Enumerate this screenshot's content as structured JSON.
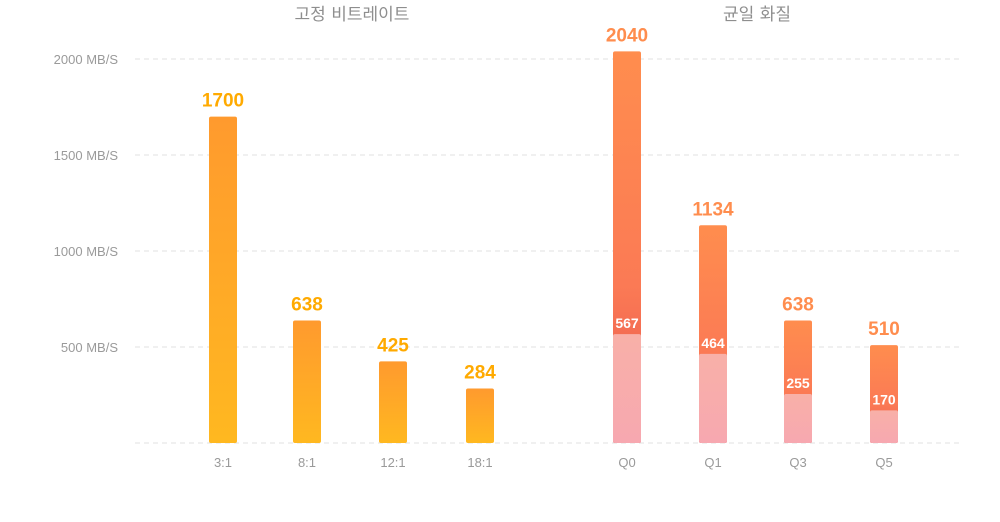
{
  "chart_data": [
    {
      "type": "bar",
      "title": "고정 비트레이트",
      "categories": [
        "3:1",
        "8:1",
        "12:1",
        "18:1"
      ],
      "values": [
        1700,
        638,
        425,
        284
      ],
      "ylim": [
        0,
        2000
      ],
      "yticks": [
        "2000 MB/S",
        "1500 MB/S",
        "1000 MB/S",
        "500 MB/S"
      ],
      "ytick_values": [
        2000,
        1500,
        1000,
        500
      ],
      "grid": true,
      "colors": {
        "top": "#ff9a2e",
        "bottom": "#ffb820",
        "label": "#ffaa00"
      }
    },
    {
      "type": "bar",
      "title": "균일 화질",
      "categories": [
        "Q0",
        "Q1",
        "Q3",
        "Q5"
      ],
      "values": [
        2040,
        1134,
        638,
        510
      ],
      "inner_values": [
        567,
        464,
        255,
        170
      ],
      "ylim": [
        0,
        2000
      ],
      "grid": true,
      "colors": {
        "top": "#ff8d4e",
        "mid": "#e8524e",
        "base": "#f8aaaa",
        "label": "#ff8d4e"
      }
    }
  ]
}
